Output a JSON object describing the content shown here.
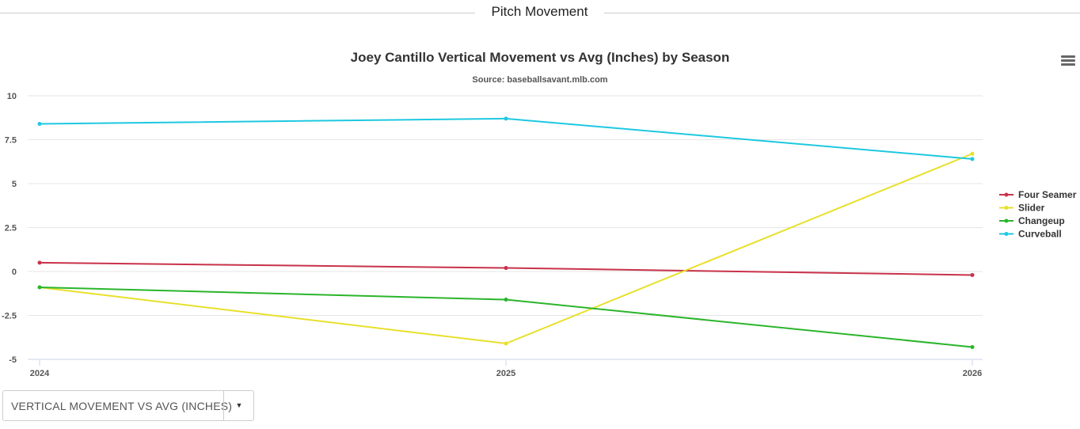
{
  "section": {
    "title": "Pitch Movement"
  },
  "menu": {
    "icon": "hamburger-menu-icon"
  },
  "dropdown": {
    "value": "VERTICAL MOVEMENT VS AVG (INCHES)",
    "icon": "caret-down-icon",
    "caret": "▼"
  },
  "chart_data": {
    "type": "line",
    "title": "Joey Cantillo Vertical Movement vs Avg (Inches) by Season",
    "subtitle": "Source: baseballsavant.mlb.com",
    "xlabel": "",
    "ylabel": "",
    "categories": [
      "2024",
      "2025",
      "2026"
    ],
    "yticks": [
      "10",
      "7.5",
      "5",
      "2.5",
      "0",
      "-2.5",
      "-5"
    ],
    "ylim": [
      -5,
      10
    ],
    "grid": true,
    "legend_position": "right",
    "series": [
      {
        "name": "Four Seamer",
        "color": "#c8324a",
        "values": [
          0.5,
          0.2,
          -0.2
        ]
      },
      {
        "name": "Slider",
        "color": "#e8e02a",
        "values": [
          -0.9,
          -4.1,
          6.7
        ]
      },
      {
        "name": "Changeup",
        "color": "#2bb52b",
        "values": [
          -0.9,
          -1.6,
          -4.3
        ]
      },
      {
        "name": "Curveball",
        "color": "#1ec8e0",
        "values": [
          8.4,
          8.7,
          6.4
        ]
      }
    ]
  }
}
